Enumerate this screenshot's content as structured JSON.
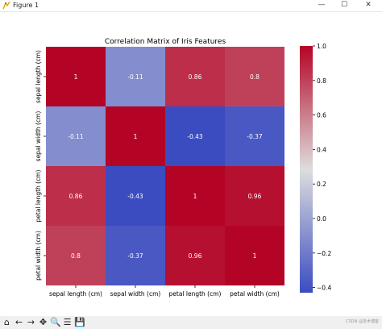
{
  "window": {
    "title": "Figure 1",
    "minimize_glyph": "—",
    "maximize_glyph": "☐"
  },
  "colors": {
    "cmap_low": "#3b4cc0",
    "cmap_mid": "#dddddd",
    "cmap_high": "#b40426"
  },
  "chart_data": {
    "type": "heatmap",
    "title": "Correlation Matrix of Iris Features",
    "x_labels": [
      "sepal length (cm)",
      "sepal width (cm)",
      "petal length (cm)",
      "petal width (cm)"
    ],
    "y_labels": [
      "sepal length (cm)",
      "sepal width (cm)",
      "petal length (cm)",
      "petal width (cm)"
    ],
    "values": [
      [
        1,
        -0.11,
        0.86,
        0.8
      ],
      [
        -0.11,
        1,
        -0.43,
        -0.37
      ],
      [
        0.86,
        -0.43,
        1,
        0.96
      ],
      [
        0.8,
        -0.37,
        0.96,
        1
      ]
    ],
    "annotations": [
      [
        "1",
        "-0.11",
        "0.86",
        "0.8"
      ],
      [
        "-0.11",
        "1",
        "-0.43",
        "-0.37"
      ],
      [
        "0.86",
        "-0.43",
        "1",
        "0.96"
      ],
      [
        "0.8",
        "-0.37",
        "0.96",
        "1"
      ]
    ],
    "colormap": "coolwarm",
    "vmin": -0.43,
    "vmax": 1.0,
    "colorbar": {
      "ticks": [
        1.0,
        0.8,
        0.6,
        0.4,
        0.2,
        0.0,
        -0.2,
        -0.4
      ],
      "tick_labels": [
        "1.0",
        "0.8",
        "0.6",
        "0.4",
        "0.2",
        "0.0",
        "−0.2",
        "−0.4"
      ],
      "placement": "right"
    }
  },
  "toolbar": {
    "items": [
      {
        "name": "home-icon",
        "glyph": "⌂"
      },
      {
        "name": "back-arrow-icon",
        "glyph": "←"
      },
      {
        "name": "forward-arrow-icon",
        "glyph": "→"
      },
      {
        "name": "pan-icon",
        "glyph": "✥"
      },
      {
        "name": "zoom-icon",
        "glyph": "🔍"
      },
      {
        "name": "configure-subplots-icon",
        "glyph": "☰"
      },
      {
        "name": "save-icon",
        "glyph": "💾"
      }
    ],
    "watermark": "CSDN @技术博客"
  }
}
